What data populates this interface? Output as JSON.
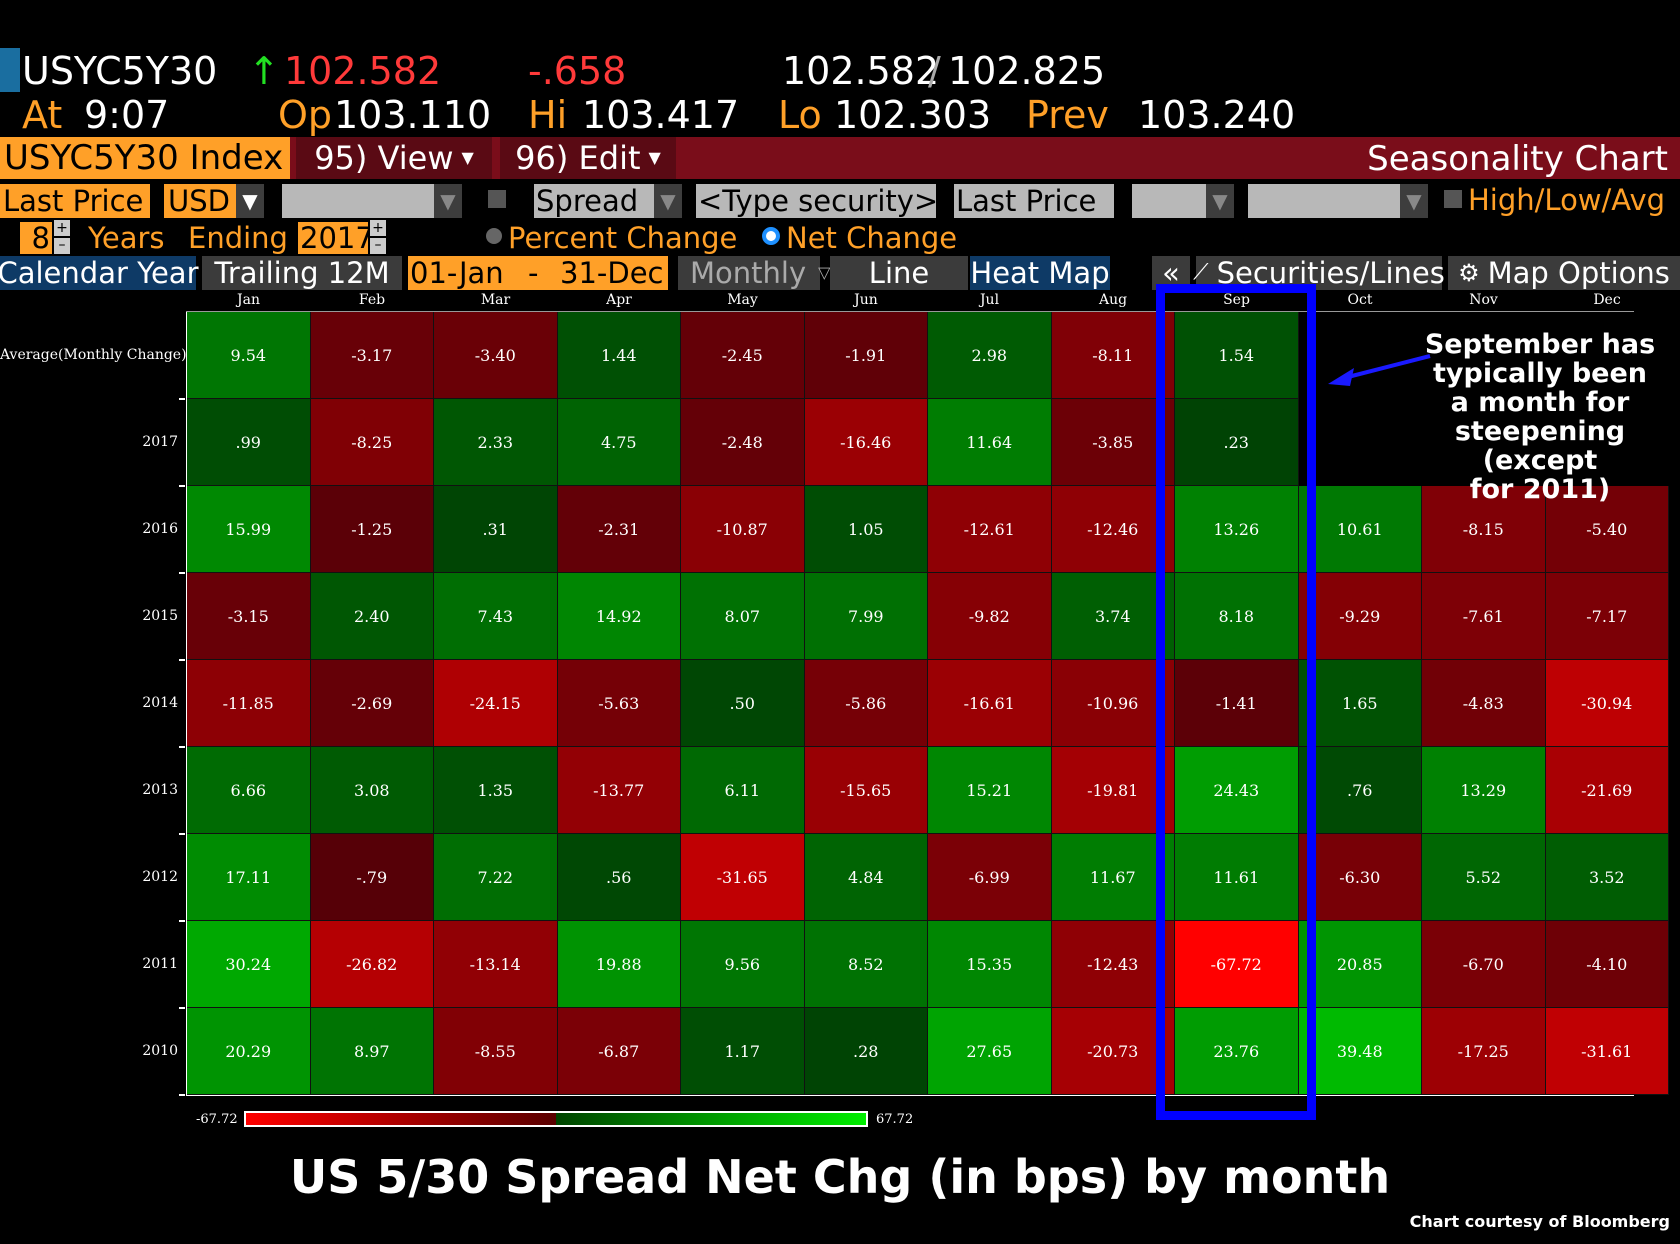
{
  "quote": {
    "ticker": "USYC5Y30",
    "arrow": "↑",
    "last": "102.582",
    "change": "-.658",
    "bid": "102.582",
    "sep": "/",
    "ask": "102.825",
    "at_label": "At",
    "at_time": "9:07",
    "op_label": "Op",
    "op": "103.110",
    "hi_label": "Hi",
    "hi": "103.417",
    "lo_label": "Lo",
    "lo": "102.303",
    "prev_label": "Prev",
    "prev": "103.240"
  },
  "titlebar": {
    "security": "USYC5Y30 Index",
    "view": "95) View",
    "edit": "96) Edit",
    "title": "Seasonality Chart"
  },
  "controls": {
    "field": "Last Price",
    "currency": "USD",
    "mode": "Spread",
    "type_security": "<Type security>",
    "field2": "Last Price",
    "hla": "High/Low/Avg",
    "years_value": "8",
    "years_label": "Years",
    "ending_label": "Ending",
    "ending_year": "2017",
    "percent_change": "Percent Change",
    "net_change": "Net Change"
  },
  "tabs": {
    "calendar_year": "Calendar Year",
    "trailing": "Trailing 12M",
    "start": "01-Jan",
    "dash": "-",
    "end": "31-Dec",
    "monthly": "Monthly",
    "line": "Line",
    "heat_map": "Heat Map",
    "collapse": "«",
    "securities": "Securities/Lines",
    "map_options": "Map Options"
  },
  "chart_data": {
    "type": "heatmap",
    "title": "US 5/30 Spread Net Chg (in bps) by month",
    "columns": [
      "Jan",
      "Feb",
      "Mar",
      "Apr",
      "May",
      "Jun",
      "Jul",
      "Aug",
      "Sep",
      "Oct",
      "Nov",
      "Dec"
    ],
    "rows": [
      {
        "label": "Average(Monthly Change)",
        "values": [
          "9.54",
          "-3.17",
          "-3.40",
          "1.44",
          "-2.45",
          "-1.91",
          "2.98",
          "-8.11",
          "1.54",
          null,
          null,
          null
        ]
      },
      {
        "label": "2017",
        "values": [
          ".99",
          "-8.25",
          "2.33",
          "4.75",
          "-2.48",
          "-16.46",
          "11.64",
          "-3.85",
          ".23",
          null,
          null,
          null
        ]
      },
      {
        "label": "2016",
        "values": [
          "15.99",
          "-1.25",
          ".31",
          "-2.31",
          "-10.87",
          "1.05",
          "-12.61",
          "-12.46",
          "13.26",
          "10.61",
          "-8.15",
          "-5.40"
        ]
      },
      {
        "label": "2015",
        "values": [
          "-3.15",
          "2.40",
          "7.43",
          "14.92",
          "8.07",
          "7.99",
          "-9.82",
          "3.74",
          "8.18",
          "-9.29",
          "-7.61",
          "-7.17"
        ]
      },
      {
        "label": "2014",
        "values": [
          "-11.85",
          "-2.69",
          "-24.15",
          "-5.63",
          ".50",
          "-5.86",
          "-16.61",
          "-10.96",
          "-1.41",
          "1.65",
          "-4.83",
          "-30.94"
        ]
      },
      {
        "label": "2013",
        "values": [
          "6.66",
          "3.08",
          "1.35",
          "-13.77",
          "6.11",
          "-15.65",
          "15.21",
          "-19.81",
          "24.43",
          ".76",
          "13.29",
          "-21.69"
        ]
      },
      {
        "label": "2012",
        "values": [
          "17.11",
          "-.79",
          "7.22",
          ".56",
          "-31.65",
          "4.84",
          "-6.99",
          "11.67",
          "11.61",
          "-6.30",
          "5.52",
          "3.52"
        ]
      },
      {
        "label": "2011",
        "values": [
          "30.24",
          "-26.82",
          "-13.14",
          "19.88",
          "9.56",
          "8.52",
          "15.35",
          "-12.43",
          "-67.72",
          "20.85",
          "-6.70",
          "-4.10"
        ]
      },
      {
        "label": "2010",
        "values": [
          "20.29",
          "8.97",
          "-8.55",
          "-6.87",
          "1.17",
          ".28",
          "27.65",
          "-20.73",
          "23.76",
          "39.48",
          "-17.25",
          "-31.61"
        ]
      }
    ],
    "scale_min": "-67.72",
    "scale_max": "67.72",
    "colors": {
      "negative": "#ff0000",
      "positive": "#00ee00",
      "neutral": "#3a0000"
    },
    "highlight_column": "Sep"
  },
  "annotation": {
    "text_lines": [
      "September has",
      "typically been",
      "a month for",
      "steepening (except",
      "for 2011)"
    ]
  },
  "footer": {
    "credit": "Chart courtesy of Bloomberg"
  }
}
